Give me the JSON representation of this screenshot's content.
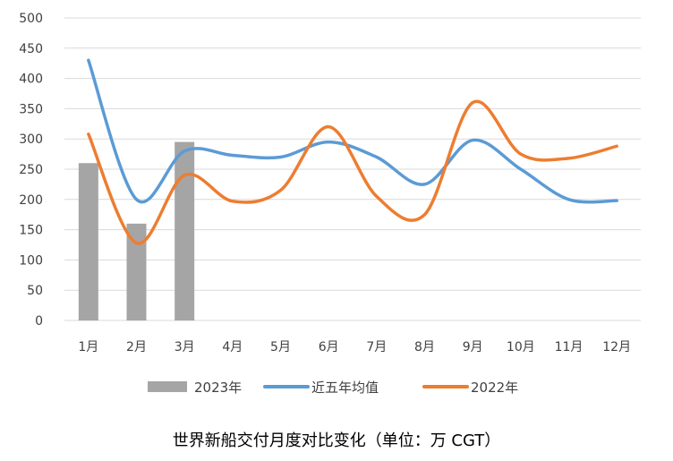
{
  "chart_data": {
    "type": "bar+line",
    "title": "世界新船交付月度对比变化（单位：万 CGT）",
    "categories": [
      "1月",
      "2月",
      "3月",
      "4月",
      "5月",
      "6月",
      "7月",
      "8月",
      "9月",
      "10月",
      "11月",
      "12月"
    ],
    "ylim": [
      0,
      500
    ],
    "yticks": [
      0,
      50,
      100,
      150,
      200,
      250,
      300,
      350,
      400,
      450,
      500
    ],
    "grid": true,
    "legend_position": "bottom",
    "series": [
      {
        "name": "2023年",
        "type": "bar",
        "color": "#A5A5A5",
        "values": [
          260,
          160,
          295,
          null,
          null,
          null,
          null,
          null,
          null,
          null,
          null,
          null
        ]
      },
      {
        "name": "近五年均值",
        "type": "line",
        "color": "#5B9BD5",
        "values": [
          430,
          200,
          280,
          273,
          270,
          295,
          270,
          225,
          298,
          250,
          200,
          198
        ]
      },
      {
        "name": "2022年",
        "type": "line",
        "color": "#ED7D31",
        "values": [
          308,
          128,
          240,
          197,
          215,
          320,
          205,
          175,
          360,
          275,
          268,
          288
        ]
      }
    ]
  }
}
